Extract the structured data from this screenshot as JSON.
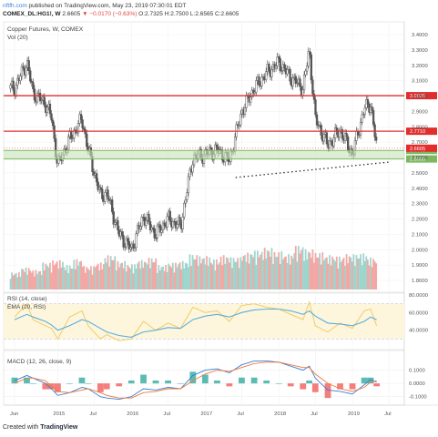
{
  "header": {
    "site": "nftfh.com",
    "published": "published on TradingView.com, May 23, 2019 07:30:01 EDT",
    "symbol": "COMEX_DL:HG1!, W",
    "price": "2.6605",
    "change": "▼ −0.0170 (−0.63%)",
    "ohlc": "O:2.7325 H:2.7500 L:2.6565 C:2.6605"
  },
  "footer": {
    "prefix": "Created with",
    "brand": "TradingView"
  },
  "colors": {
    "up": "#26a69a",
    "down": "#ef5350",
    "candle": "#555555",
    "rsi": "#f0c85a",
    "ema": "#5aaee0",
    "hline": "#e22d2d",
    "support": "#7bb85e"
  },
  "chart_data": [
    {
      "type": "candlestick",
      "title": "Copper Futures, W, COMEX",
      "subtitle": "Vol (20)",
      "ylim": [
        1.8,
        3.4
      ],
      "yticks": [
        "3.4000",
        "3.3000",
        "3.2000",
        "3.1000",
        "3.0000",
        "2.9000",
        "2.8000",
        "2.7000",
        "2.6000",
        "2.5000",
        "2.4000",
        "2.3000",
        "2.2000",
        "2.1000",
        "2.0000",
        "1.9000",
        "1.8000"
      ],
      "x_ticks": [
        "Jun",
        "2015",
        "Jul",
        "2016",
        "Jul",
        "2017",
        "Jul",
        "2018",
        "Jul",
        "2019",
        "Jul"
      ],
      "series_close": [
        {
          "date": "2014-06",
          "value": 3.05
        },
        {
          "date": "2014-08",
          "value": 3.22
        },
        {
          "date": "2014-09",
          "value": 3.02
        },
        {
          "date": "2014-11",
          "value": 2.95
        },
        {
          "date": "2014-12",
          "value": 2.86
        },
        {
          "date": "2015-01",
          "value": 2.55
        },
        {
          "date": "2015-03",
          "value": 2.72
        },
        {
          "date": "2015-05",
          "value": 2.85
        },
        {
          "date": "2015-06",
          "value": 2.65
        },
        {
          "date": "2015-08",
          "value": 2.35
        },
        {
          "date": "2015-09",
          "value": 2.37
        },
        {
          "date": "2015-11",
          "value": 2.1
        },
        {
          "date": "2016-01",
          "value": 2.0
        },
        {
          "date": "2016-03",
          "value": 2.22
        },
        {
          "date": "2016-05",
          "value": 2.1
        },
        {
          "date": "2016-07",
          "value": 2.2
        },
        {
          "date": "2016-09",
          "value": 2.15
        },
        {
          "date": "2016-11",
          "value": 2.6
        },
        {
          "date": "2017-01",
          "value": 2.62
        },
        {
          "date": "2017-03",
          "value": 2.65
        },
        {
          "date": "2017-05",
          "value": 2.58
        },
        {
          "date": "2017-07",
          "value": 2.9
        },
        {
          "date": "2017-09",
          "value": 3.05
        },
        {
          "date": "2017-11",
          "value": 3.15
        },
        {
          "date": "2018-01",
          "value": 3.22
        },
        {
          "date": "2018-03",
          "value": 3.12
        },
        {
          "date": "2018-05",
          "value": 3.05
        },
        {
          "date": "2018-06",
          "value": 3.3
        },
        {
          "date": "2018-07",
          "value": 2.85
        },
        {
          "date": "2018-09",
          "value": 2.68
        },
        {
          "date": "2018-11",
          "value": 2.78
        },
        {
          "date": "2019-01",
          "value": 2.62
        },
        {
          "date": "2019-03",
          "value": 2.92
        },
        {
          "date": "2019-04",
          "value": 2.95
        },
        {
          "date": "2019-05",
          "value": 2.66
        }
      ],
      "horizontal_lines": [
        {
          "value": 3.0025,
          "label": "3.0025"
        },
        {
          "value": 2.771,
          "label": "2.7710"
        }
      ],
      "support_band": {
        "lines": [
          {
            "value": 2.6462,
            "label": "2.6462"
          },
          {
            "value": 2.5905,
            "label": "2.5905"
          }
        ]
      },
      "current_price": {
        "value": 2.6605,
        "label": "2.6605"
      },
      "trendline": {
        "from": {
          "date": "2017-06",
          "value": 2.47
        },
        "to": {
          "date": "2019-07",
          "value": 2.57
        }
      },
      "volume_relative": [
        0.35,
        0.45,
        0.4,
        0.55,
        0.6,
        0.5,
        0.62,
        0.48,
        0.55,
        0.7,
        0.58,
        0.52,
        0.6,
        0.65,
        0.5,
        0.55,
        0.58,
        0.72,
        0.68,
        0.62,
        0.7,
        0.66,
        0.75,
        0.8,
        0.85,
        0.78,
        0.72,
        0.9,
        0.82,
        0.76,
        0.7,
        0.68,
        0.72,
        0.74,
        0.65
      ]
    },
    {
      "type": "line",
      "title": "RSI (14, close)",
      "subtitle": "EMA (20, RSI)",
      "ylim": [
        20,
        80
      ],
      "yticks": [
        "80.0000",
        "60.0000",
        "40.0000"
      ],
      "band": [
        30,
        70
      ],
      "series": [
        {
          "values": [
            55,
            70,
            52,
            45,
            42,
            30,
            55,
            62,
            45,
            30,
            35,
            28,
            30,
            50,
            40,
            48,
            42,
            66,
            60,
            62,
            50,
            68,
            70,
            66,
            64,
            58,
            52,
            72,
            45,
            38,
            48,
            42,
            62,
            64,
            45
          ]
        },
        {
          "values": [
            52,
            58,
            55,
            50,
            46,
            40,
            45,
            52,
            50,
            42,
            38,
            34,
            32,
            38,
            40,
            43,
            42,
            52,
            56,
            58,
            55,
            60,
            63,
            64,
            64,
            62,
            58,
            62,
            56,
            48,
            47,
            45,
            50,
            55,
            52
          ]
        }
      ]
    },
    {
      "type": "line",
      "title": "MACD (12, 26, close, 9)",
      "ylim": [
        -0.15,
        0.2
      ],
      "yticks": [
        "0.1000",
        "0.0000",
        "-0.1000"
      ],
      "series": [
        {
          "values": [
            0.02,
            0.06,
            0.04,
            0.0,
            -0.04,
            -0.09,
            -0.07,
            -0.03,
            -0.04,
            -0.1,
            -0.11,
            -0.12,
            -0.1,
            -0.04,
            -0.05,
            -0.03,
            -0.04,
            0.06,
            0.1,
            0.11,
            0.08,
            0.14,
            0.17,
            0.17,
            0.16,
            0.13,
            0.1,
            0.13,
            0.04,
            -0.05,
            -0.06,
            -0.08,
            -0.01,
            0.03,
            0.01
          ]
        },
        {
          "values": [
            0.0,
            0.04,
            0.04,
            0.02,
            -0.02,
            -0.06,
            -0.07,
            -0.05,
            -0.04,
            -0.07,
            -0.09,
            -0.11,
            -0.11,
            -0.07,
            -0.06,
            -0.04,
            -0.04,
            0.02,
            0.07,
            0.1,
            0.09,
            0.12,
            0.15,
            0.16,
            0.16,
            0.14,
            0.12,
            0.12,
            0.07,
            0.0,
            -0.04,
            -0.06,
            -0.03,
            0.01,
            0.02
          ]
        }
      ]
    }
  ]
}
